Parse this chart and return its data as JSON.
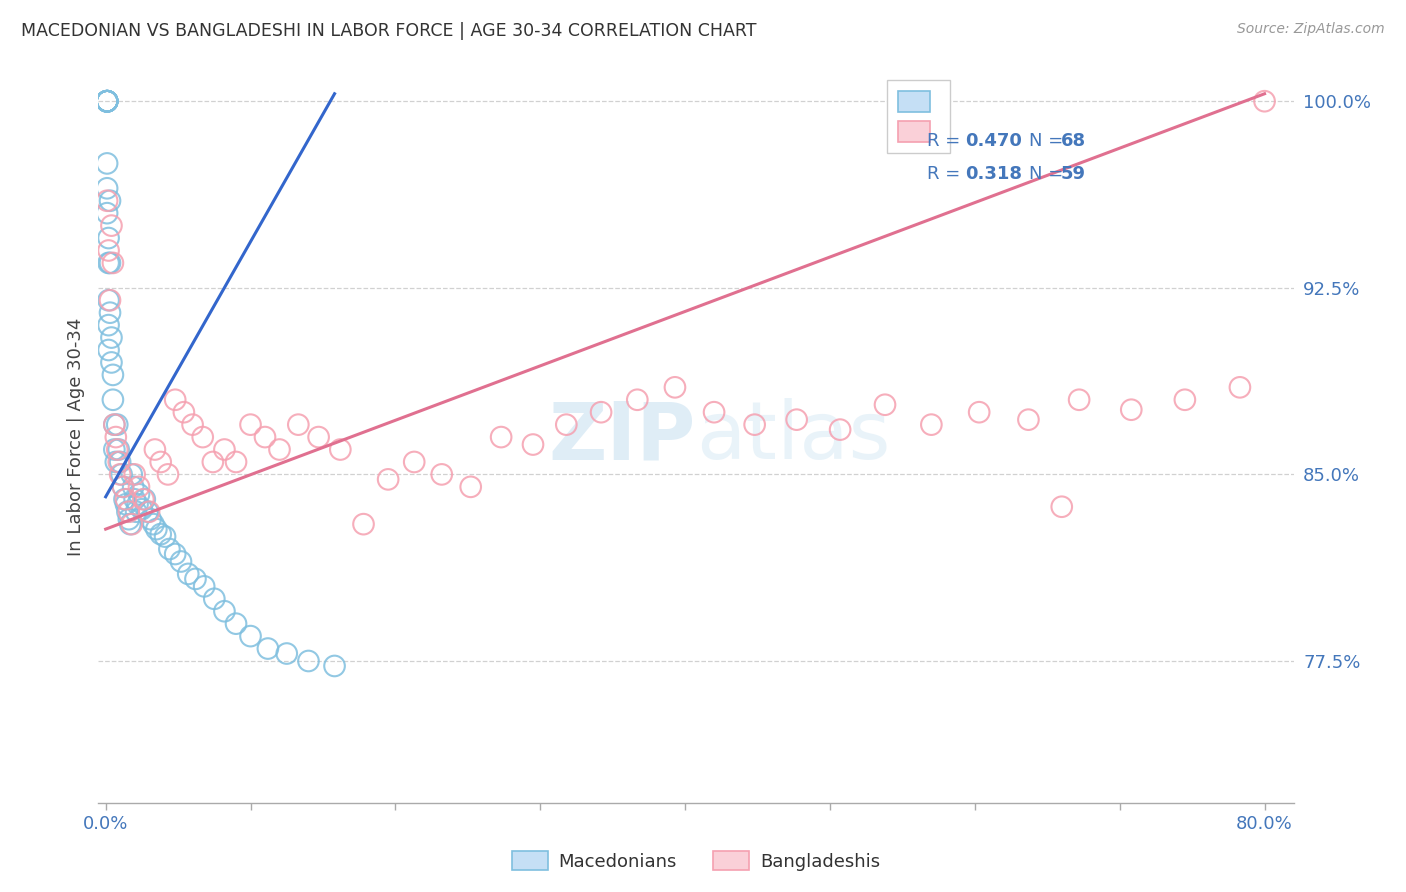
{
  "title": "MACEDONIAN VS BANGLADESHI IN LABOR FORCE | AGE 30-34 CORRELATION CHART",
  "source": "Source: ZipAtlas.com",
  "ylabel": "In Labor Force | Age 30-34",
  "watermark": "ZIPatlas",
  "xlim": [
    -0.005,
    0.82
  ],
  "ylim": [
    0.718,
    1.012
  ],
  "yticks": [
    0.775,
    0.85,
    0.925,
    1.0
  ],
  "ytick_labels": [
    "77.5%",
    "85.0%",
    "92.5%",
    "100.0%"
  ],
  "xticks": [
    0.0,
    0.1,
    0.2,
    0.3,
    0.4,
    0.5,
    0.6,
    0.7,
    0.8
  ],
  "xtick_labels": [
    "0.0%",
    "",
    "",
    "",
    "",
    "",
    "",
    "",
    "80.0%"
  ],
  "blue_R": 0.47,
  "blue_N": 68,
  "pink_R": 0.318,
  "pink_N": 59,
  "blue_color": "#7fbfdf",
  "pink_color": "#f5a0b0",
  "trend_blue_color": "#3366cc",
  "trend_pink_color": "#e07090",
  "axis_label_color": "#4477bb",
  "legend_text_color": "#4477bb",
  "title_color": "#333333",
  "grid_color": "#cccccc",
  "blue_scatter_x": [
    0.001,
    0.001,
    0.001,
    0.001,
    0.001,
    0.001,
    0.001,
    0.001,
    0.001,
    0.001,
    0.001,
    0.001,
    0.001,
    0.001,
    0.001,
    0.002,
    0.002,
    0.002,
    0.002,
    0.002,
    0.003,
    0.003,
    0.003,
    0.004,
    0.004,
    0.005,
    0.005,
    0.006,
    0.006,
    0.007,
    0.008,
    0.009,
    0.01,
    0.011,
    0.012,
    0.013,
    0.014,
    0.015,
    0.016,
    0.017,
    0.018,
    0.019,
    0.02,
    0.021,
    0.022,
    0.023,
    0.025,
    0.027,
    0.029,
    0.031,
    0.033,
    0.035,
    0.038,
    0.041,
    0.044,
    0.048,
    0.052,
    0.057,
    0.062,
    0.068,
    0.075,
    0.082,
    0.09,
    0.1,
    0.112,
    0.125,
    0.14,
    0.158
  ],
  "blue_scatter_y": [
    1.0,
    1.0,
    1.0,
    1.0,
    1.0,
    1.0,
    1.0,
    1.0,
    1.0,
    1.0,
    1.0,
    1.0,
    0.975,
    0.965,
    0.955,
    0.945,
    0.935,
    0.92,
    0.91,
    0.9,
    0.96,
    0.935,
    0.915,
    0.905,
    0.895,
    0.89,
    0.88,
    0.87,
    0.86,
    0.855,
    0.87,
    0.86,
    0.855,
    0.85,
    0.845,
    0.84,
    0.838,
    0.835,
    0.832,
    0.83,
    0.85,
    0.845,
    0.84,
    0.835,
    0.838,
    0.842,
    0.836,
    0.84,
    0.835,
    0.832,
    0.83,
    0.828,
    0.826,
    0.825,
    0.82,
    0.818,
    0.815,
    0.81,
    0.808,
    0.805,
    0.8,
    0.795,
    0.79,
    0.785,
    0.78,
    0.778,
    0.775,
    0.773
  ],
  "pink_scatter_x": [
    0.001,
    0.002,
    0.003,
    0.004,
    0.005,
    0.006,
    0.007,
    0.008,
    0.009,
    0.01,
    0.012,
    0.014,
    0.016,
    0.018,
    0.02,
    0.023,
    0.026,
    0.03,
    0.034,
    0.038,
    0.043,
    0.048,
    0.054,
    0.06,
    0.067,
    0.074,
    0.082,
    0.09,
    0.1,
    0.11,
    0.12,
    0.133,
    0.147,
    0.162,
    0.178,
    0.195,
    0.213,
    0.232,
    0.252,
    0.273,
    0.295,
    0.318,
    0.342,
    0.367,
    0.393,
    0.42,
    0.448,
    0.477,
    0.507,
    0.538,
    0.57,
    0.603,
    0.637,
    0.672,
    0.708,
    0.745,
    0.783,
    0.66,
    0.8
  ],
  "pink_scatter_y": [
    0.96,
    0.94,
    0.92,
    0.95,
    0.935,
    0.87,
    0.865,
    0.86,
    0.855,
    0.85,
    0.845,
    0.84,
    0.835,
    0.83,
    0.85,
    0.845,
    0.84,
    0.835,
    0.86,
    0.855,
    0.85,
    0.88,
    0.875,
    0.87,
    0.865,
    0.855,
    0.86,
    0.855,
    0.87,
    0.865,
    0.86,
    0.87,
    0.865,
    0.86,
    0.83,
    0.848,
    0.855,
    0.85,
    0.845,
    0.865,
    0.862,
    0.87,
    0.875,
    0.88,
    0.885,
    0.875,
    0.87,
    0.872,
    0.868,
    0.878,
    0.87,
    0.875,
    0.872,
    0.88,
    0.876,
    0.88,
    0.885,
    0.837,
    1.0
  ],
  "blue_trend_x": [
    0.0,
    0.158
  ],
  "blue_trend_y": [
    0.841,
    1.003
  ],
  "pink_trend_x": [
    0.0,
    0.8
  ],
  "pink_trend_y": [
    0.828,
    1.003
  ]
}
